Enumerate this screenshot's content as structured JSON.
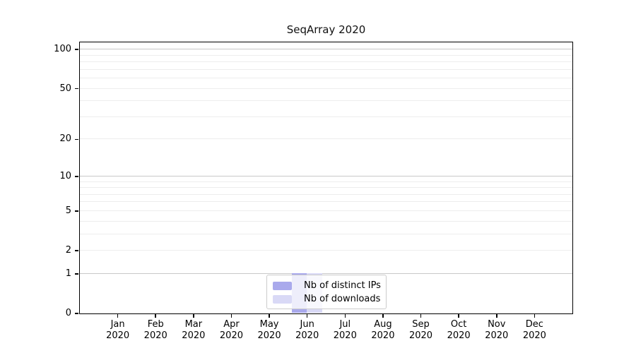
{
  "chart_data": {
    "type": "bar",
    "title": "SeqArray 2020",
    "categories": [
      "Jan",
      "Feb",
      "Mar",
      "Apr",
      "May",
      "Jun",
      "Jul",
      "Aug",
      "Sep",
      "Oct",
      "Nov",
      "Dec"
    ],
    "xtick_year": "2020",
    "series": [
      {
        "name": "Nb of distinct IPs",
        "color": "#a9a9ec",
        "values": [
          0,
          0,
          0,
          0,
          0,
          1,
          0,
          0,
          0,
          0,
          0,
          0
        ]
      },
      {
        "name": "Nb of downloads",
        "color": "#d9d9f6",
        "values": [
          0,
          0,
          0,
          0,
          0,
          1,
          0,
          0,
          0,
          0,
          0,
          0
        ]
      }
    ],
    "yscale": "log1p",
    "ylim": [
      0,
      113.6
    ],
    "ytick_labels": [
      0,
      1,
      2,
      5,
      10,
      20,
      50,
      100
    ],
    "major_gridlines": [
      1,
      10,
      100
    ],
    "minor_gridlines": [
      2,
      3,
      4,
      5,
      6,
      7,
      8,
      9,
      20,
      30,
      40,
      50,
      60,
      70,
      80,
      90
    ],
    "grid": true,
    "legend_position": "bottom-center"
  }
}
